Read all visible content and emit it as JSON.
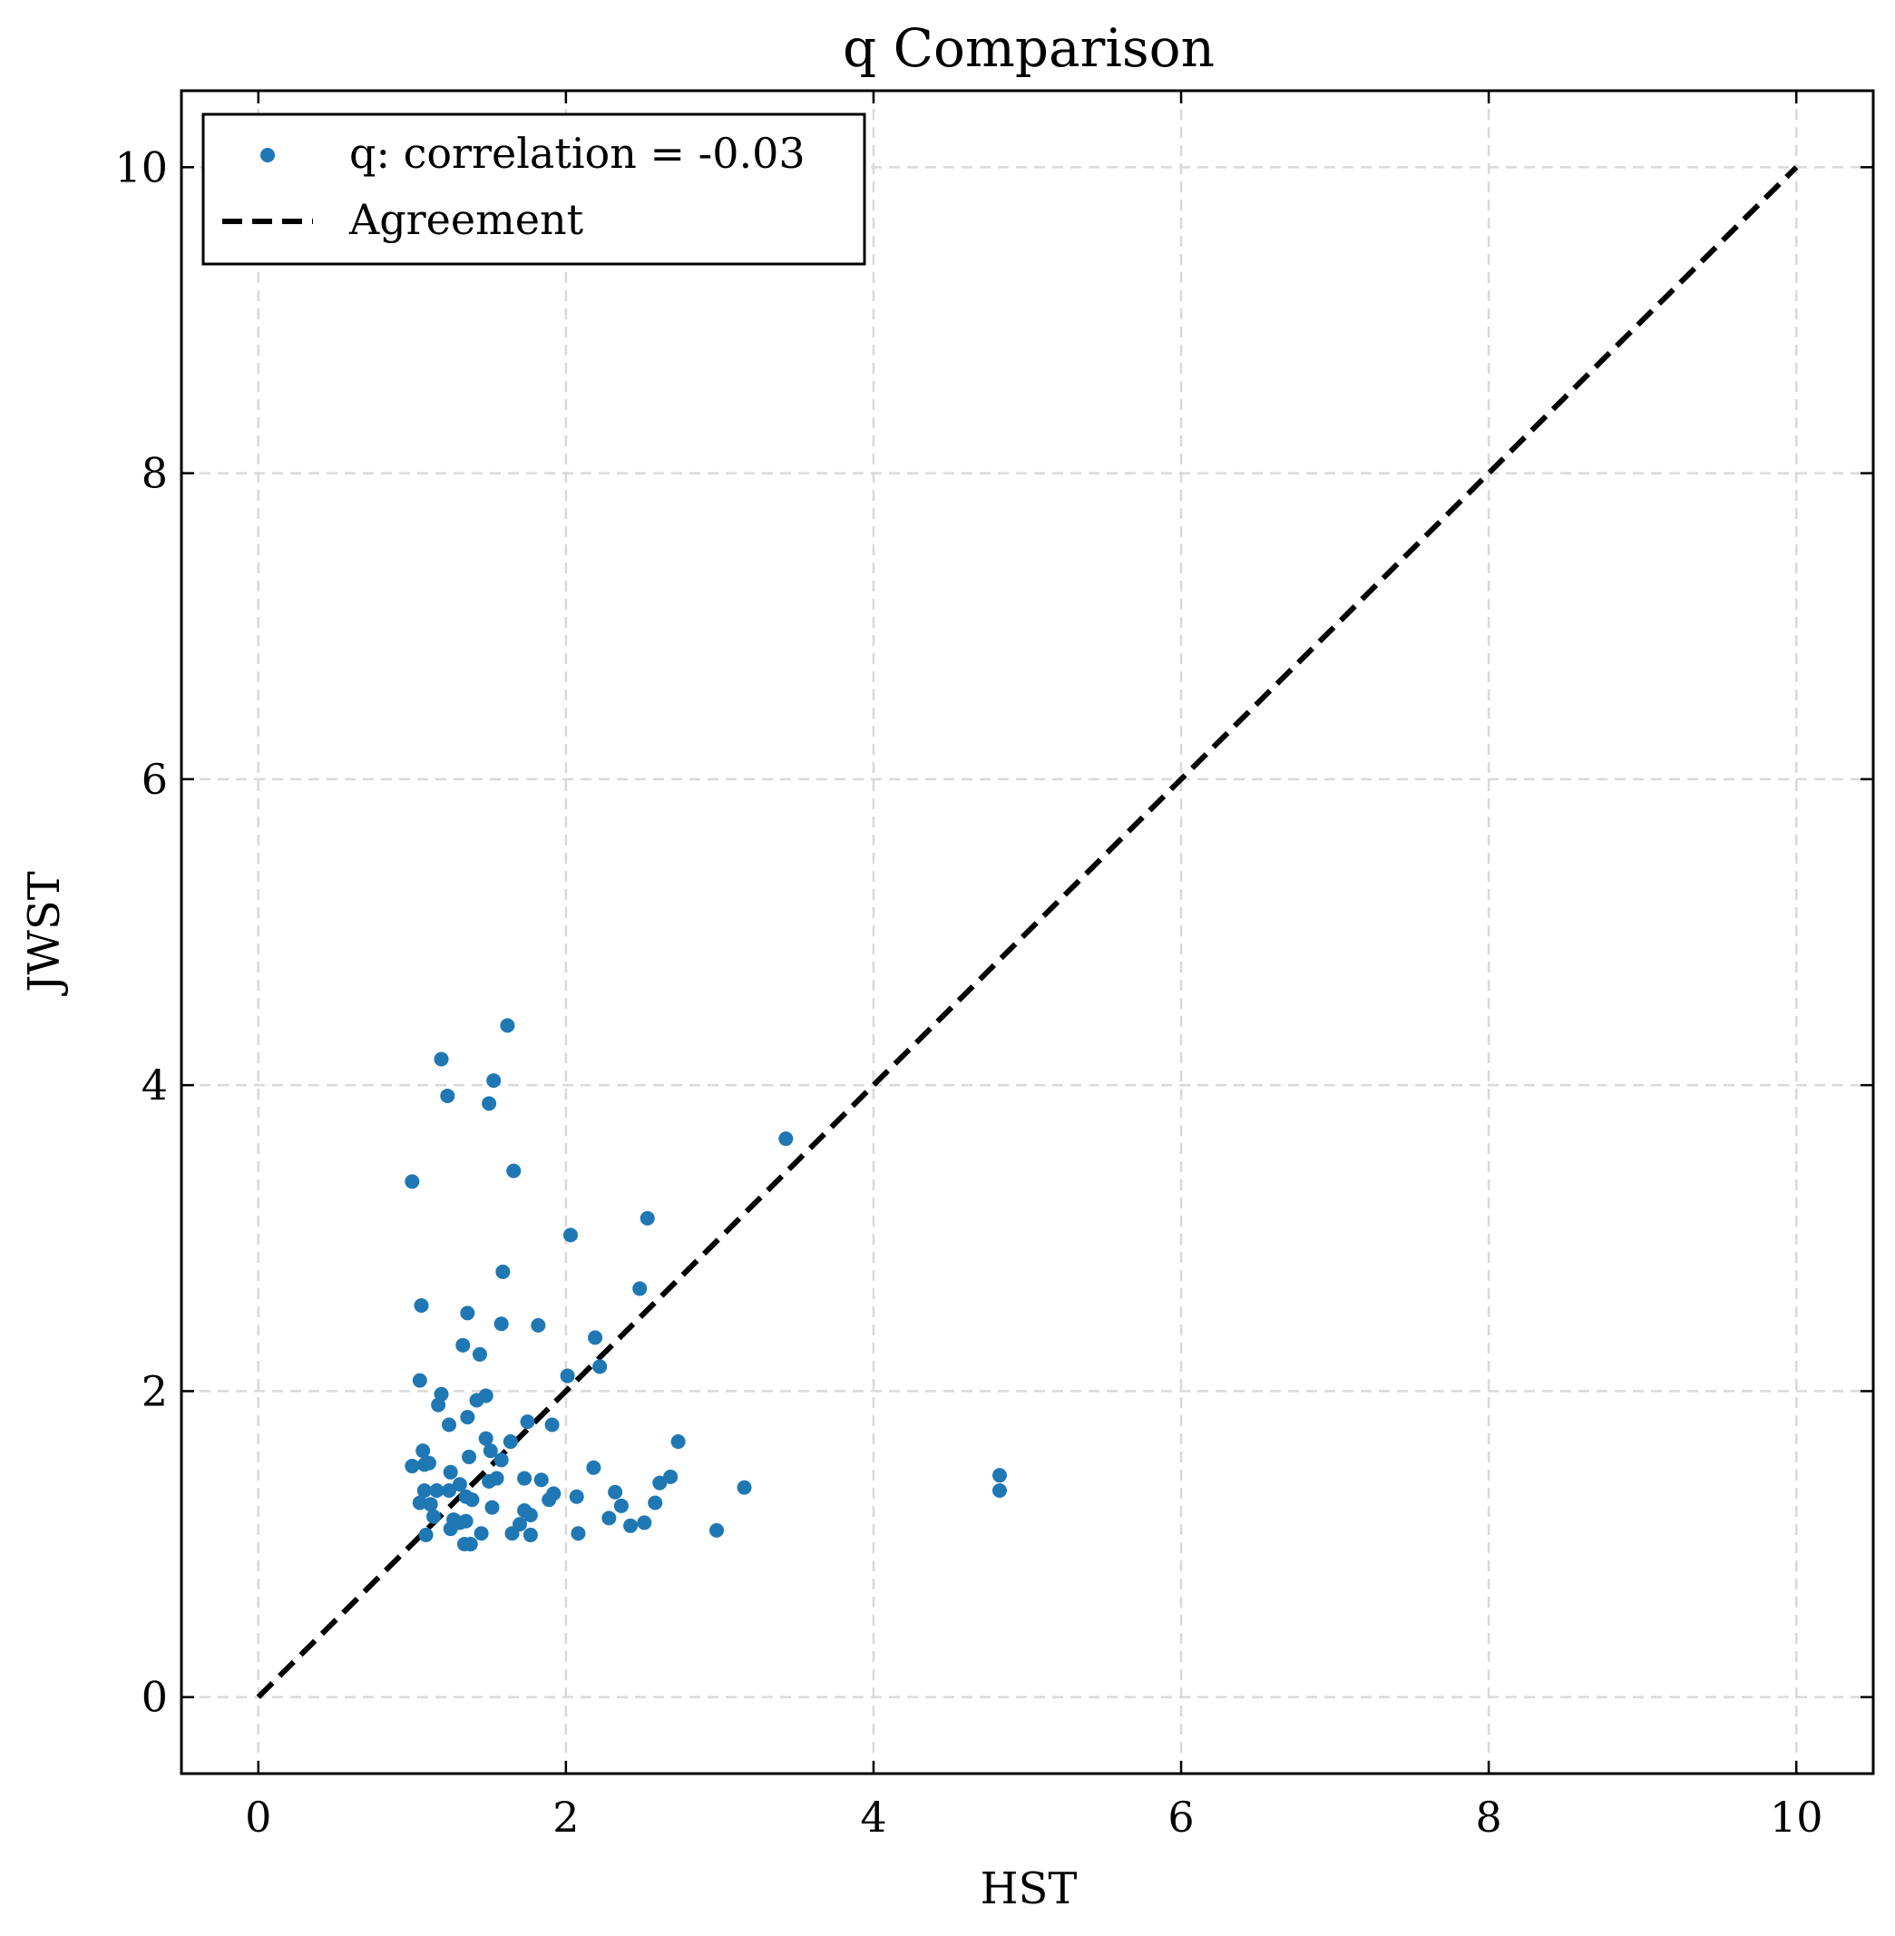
{
  "chart_data": {
    "type": "scatter",
    "title": "q Comparison",
    "xlabel": "HST",
    "ylabel": "JWST",
    "xlim": [
      -0.5,
      10.5
    ],
    "ylim": [
      -0.5,
      10.5
    ],
    "xticks": [
      0,
      2,
      4,
      6,
      8,
      10
    ],
    "yticks": [
      0,
      2,
      4,
      6,
      8,
      10
    ],
    "grid": true,
    "legend_position": "top-left",
    "colors": {
      "points": "#1f77b4",
      "agreement_line": "#000000"
    },
    "series": [
      {
        "name": "q: correlation = -0.03",
        "kind": "scatter",
        "points": [
          [
            1.62,
            4.39
          ],
          [
            1.19,
            4.17
          ],
          [
            1.53,
            4.03
          ],
          [
            1.23,
            3.93
          ],
          [
            1.5,
            3.88
          ],
          [
            3.43,
            3.65
          ],
          [
            1.66,
            3.44
          ],
          [
            1.0,
            3.37
          ],
          [
            2.53,
            3.13
          ],
          [
            2.03,
            3.02
          ],
          [
            1.59,
            2.78
          ],
          [
            2.48,
            2.67
          ],
          [
            1.06,
            2.56
          ],
          [
            1.36,
            2.51
          ],
          [
            1.58,
            2.44
          ],
          [
            1.82,
            2.43
          ],
          [
            2.19,
            2.35
          ],
          [
            1.33,
            2.3
          ],
          [
            1.44,
            2.24
          ],
          [
            2.22,
            2.16
          ],
          [
            2.01,
            2.1
          ],
          [
            1.05,
            2.07
          ],
          [
            1.19,
            1.98
          ],
          [
            1.48,
            1.97
          ],
          [
            1.42,
            1.94
          ],
          [
            1.17,
            1.91
          ],
          [
            1.36,
            1.83
          ],
          [
            1.75,
            1.8
          ],
          [
            1.24,
            1.78
          ],
          [
            1.91,
            1.78
          ],
          [
            1.48,
            1.69
          ],
          [
            2.73,
            1.67
          ],
          [
            1.64,
            1.67
          ],
          [
            1.07,
            1.61
          ],
          [
            1.51,
            1.61
          ],
          [
            1.37,
            1.57
          ],
          [
            1.58,
            1.55
          ],
          [
            1.11,
            1.53
          ],
          [
            1.0,
            1.51
          ],
          [
            1.08,
            1.52
          ],
          [
            2.18,
            1.5
          ],
          [
            1.25,
            1.47
          ],
          [
            4.82,
            1.45
          ],
          [
            2.68,
            1.44
          ],
          [
            1.73,
            1.43
          ],
          [
            1.84,
            1.42
          ],
          [
            1.55,
            1.43
          ],
          [
            1.5,
            1.41
          ],
          [
            2.61,
            1.4
          ],
          [
            1.31,
            1.39
          ],
          [
            3.16,
            1.37
          ],
          [
            1.08,
            1.35
          ],
          [
            1.16,
            1.35
          ],
          [
            1.24,
            1.35
          ],
          [
            2.32,
            1.34
          ],
          [
            4.82,
            1.35
          ],
          [
            1.92,
            1.33
          ],
          [
            2.07,
            1.31
          ],
          [
            1.35,
            1.31
          ],
          [
            1.39,
            1.29
          ],
          [
            1.89,
            1.29
          ],
          [
            1.05,
            1.27
          ],
          [
            2.58,
            1.27
          ],
          [
            1.12,
            1.26
          ],
          [
            2.36,
            1.25
          ],
          [
            1.52,
            1.24
          ],
          [
            1.73,
            1.22
          ],
          [
            1.77,
            1.19
          ],
          [
            1.14,
            1.18
          ],
          [
            2.28,
            1.17
          ],
          [
            1.27,
            1.16
          ],
          [
            1.35,
            1.15
          ],
          [
            1.31,
            1.14
          ],
          [
            2.51,
            1.14
          ],
          [
            1.7,
            1.13
          ],
          [
            2.42,
            1.12
          ],
          [
            1.25,
            1.1
          ],
          [
            2.98,
            1.09
          ],
          [
            1.45,
            1.07
          ],
          [
            1.65,
            1.07
          ],
          [
            1.77,
            1.06
          ],
          [
            2.08,
            1.07
          ],
          [
            1.09,
            1.06
          ],
          [
            1.34,
            1.0
          ],
          [
            1.38,
            1.0
          ]
        ]
      },
      {
        "name": "Agreement",
        "kind": "line",
        "style": "dashed",
        "points": [
          [
            0,
            0
          ],
          [
            10,
            10
          ]
        ]
      }
    ]
  }
}
